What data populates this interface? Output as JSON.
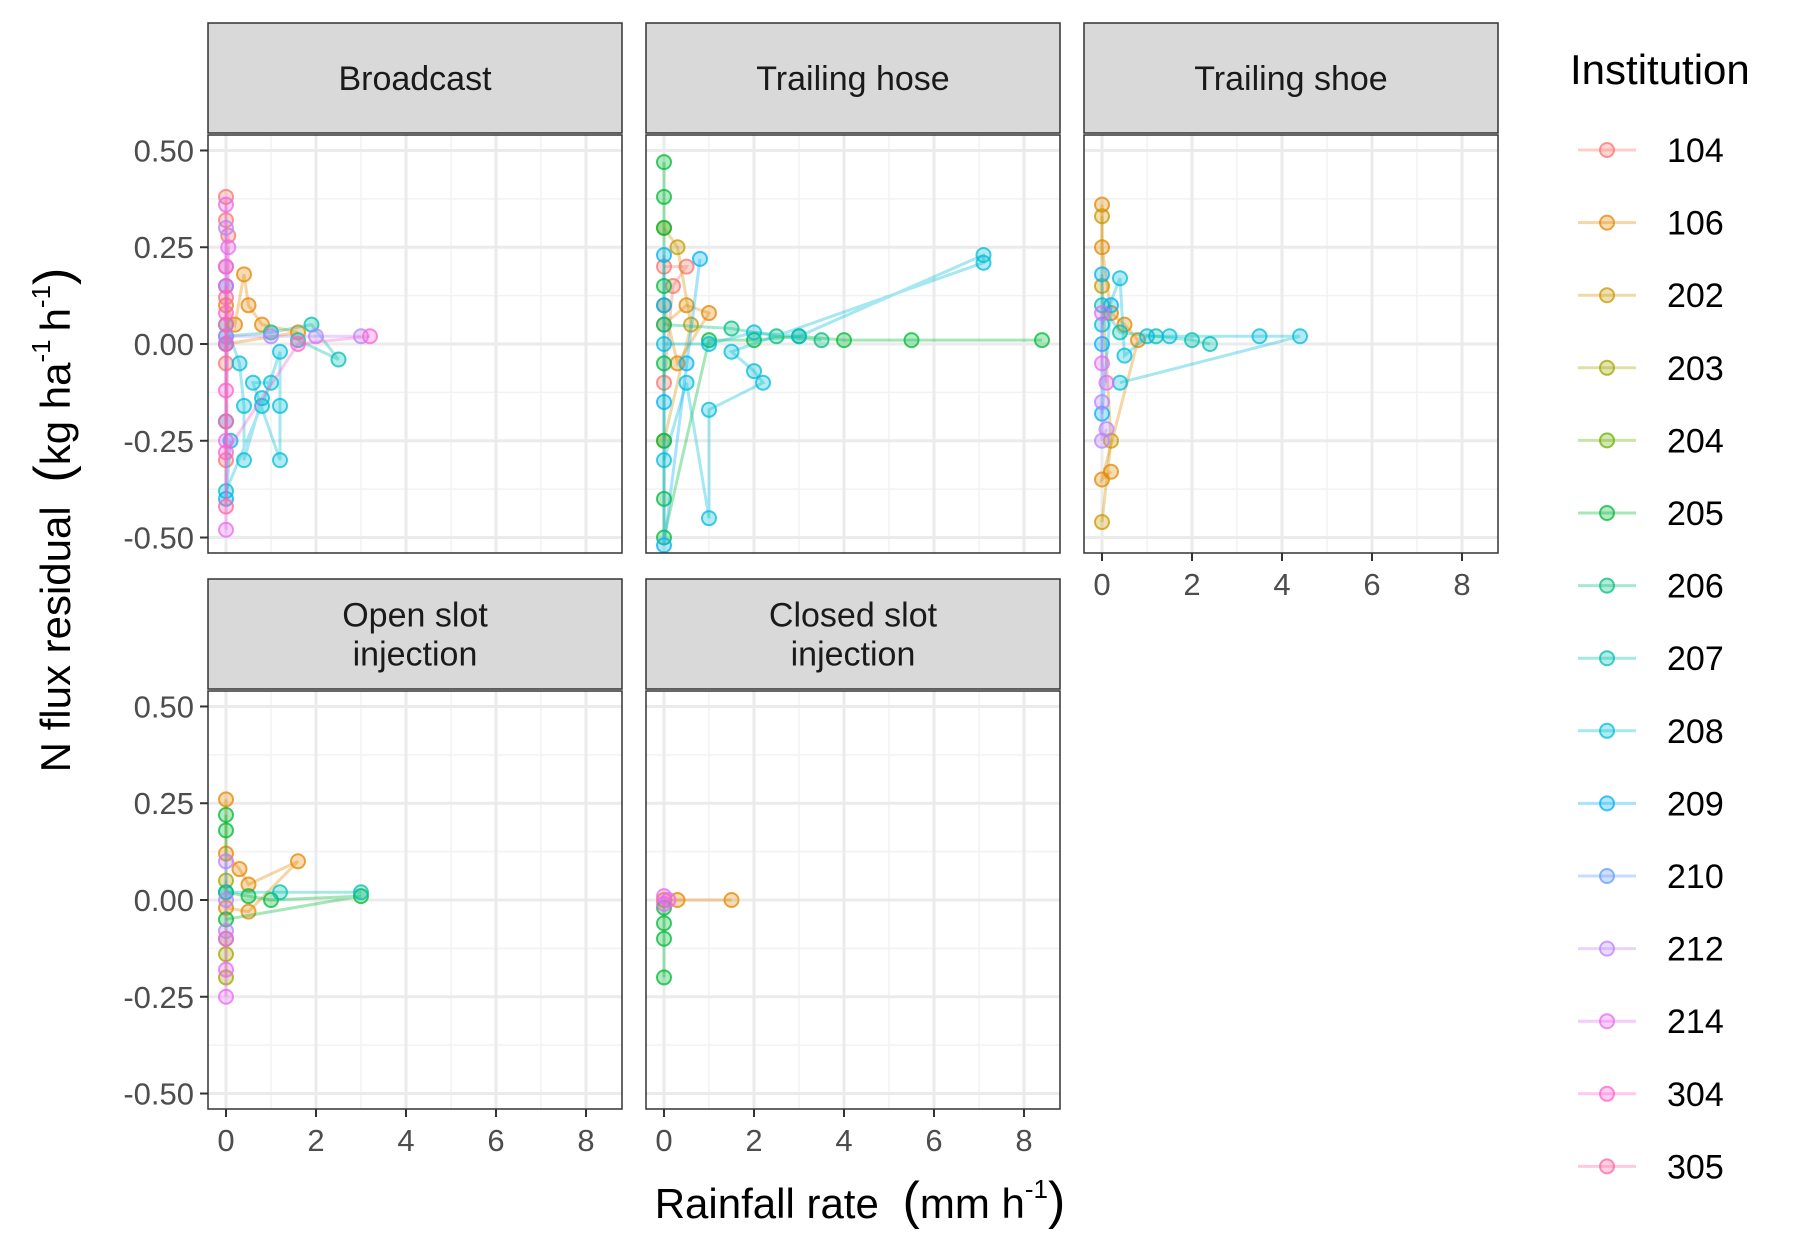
{
  "chart_data": {
    "type": "line",
    "title": "",
    "xlabel": "Rainfall rate",
    "xlabel_unit": "mm h",
    "xlabel_sup": "-1",
    "ylabel": "N flux residual",
    "ylabel_unit_kg": "kg ha",
    "ylabel_sup1": "-1",
    "ylabel_unit_h": "h",
    "ylabel_sup2": "-1",
    "xlim": [
      -0.4,
      8.8
    ],
    "ylim": [
      -0.54,
      0.54
    ],
    "xticks": [
      0,
      2,
      4,
      6,
      8
    ],
    "yticks": [
      0.5,
      0.25,
      0.0,
      -0.25,
      -0.5
    ],
    "ytick_labels": [
      "0.50",
      "0.25",
      "0.00",
      "-0.25",
      "-0.50"
    ],
    "grid": true,
    "legend": {
      "title": "Institution",
      "position": "right",
      "entries": [
        {
          "label": "104",
          "color": "#F8766D"
        },
        {
          "label": "106",
          "color": "#E58700"
        },
        {
          "label": "202",
          "color": "#C99800"
        },
        {
          "label": "203",
          "color": "#A3A500"
        },
        {
          "label": "204",
          "color": "#6BB100"
        },
        {
          "label": "205",
          "color": "#00BA38"
        },
        {
          "label": "206",
          "color": "#00BF7D"
        },
        {
          "label": "207",
          "color": "#00C0AF"
        },
        {
          "label": "208",
          "color": "#00BCD8"
        },
        {
          "label": "209",
          "color": "#00B0F6"
        },
        {
          "label": "210",
          "color": "#619CFF"
        },
        {
          "label": "212",
          "color": "#B983FF"
        },
        {
          "label": "214",
          "color": "#E76BF3"
        },
        {
          "label": "304",
          "color": "#FD61D1"
        },
        {
          "label": "305",
          "color": "#FF67A4"
        }
      ]
    },
    "panels": [
      {
        "label_lines": [
          "Broadcast"
        ],
        "series": [
          {
            "institution": "104",
            "points": [
              [
                0,
                0.38
              ],
              [
                0,
                0.32
              ],
              [
                0,
                0.2
              ],
              [
                0,
                -0.05
              ],
              [
                0,
                -0.3
              ],
              [
                0.05,
                0.28
              ]
            ]
          },
          {
            "institution": "106",
            "points": [
              [
                0,
                0.1
              ],
              [
                0.2,
                0.05
              ],
              [
                0.4,
                0.18
              ],
              [
                0.5,
                0.1
              ],
              [
                0.8,
                0.05
              ],
              [
                1.6,
                0.03
              ],
              [
                0,
                0.0
              ]
            ]
          },
          {
            "institution": "207",
            "points": [
              [
                0,
                0.02
              ],
              [
                1.0,
                0.03
              ],
              [
                1.9,
                0.05
              ],
              [
                2.5,
                -0.04
              ],
              [
                1.6,
                0.01
              ]
            ]
          },
          {
            "institution": "208",
            "points": [
              [
                0,
                0.05
              ],
              [
                0.3,
                -0.05
              ],
              [
                0.4,
                -0.16
              ],
              [
                0.4,
                -0.3
              ],
              [
                0.8,
                -0.14
              ],
              [
                0.8,
                -0.16
              ],
              [
                1.2,
                -0.02
              ],
              [
                1.2,
                -0.16
              ],
              [
                1.2,
                -0.3
              ],
              [
                0.6,
                -0.1
              ],
              [
                1.0,
                -0.1
              ],
              [
                0,
                -0.38
              ]
            ]
          },
          {
            "institution": "209",
            "points": [
              [
                0,
                0.15
              ],
              [
                0,
                0.0
              ],
              [
                0,
                -0.2
              ],
              [
                0,
                -0.4
              ],
              [
                0.1,
                -0.25
              ]
            ]
          },
          {
            "institution": "212",
            "points": [
              [
                0,
                0.3
              ],
              [
                0,
                0.02
              ],
              [
                1.0,
                0.02
              ],
              [
                2.0,
                0.02
              ],
              [
                3.0,
                0.02
              ]
            ]
          },
          {
            "institution": "214",
            "points": [
              [
                0,
                0.36
              ],
              [
                0,
                0.2
              ],
              [
                0,
                -0.25
              ],
              [
                0,
                -0.48
              ],
              [
                0.05,
                0.25
              ]
            ]
          },
          {
            "institution": "304",
            "points": [
              [
                0,
                0.15
              ],
              [
                0,
                0.08
              ],
              [
                0,
                0.0
              ],
              [
                0,
                -0.12
              ],
              [
                0,
                -0.28
              ],
              [
                1.6,
                0.0
              ],
              [
                3.2,
                0.02
              ]
            ]
          },
          {
            "institution": "305",
            "points": [
              [
                0,
                0.12
              ],
              [
                0,
                -0.2
              ],
              [
                0,
                -0.42
              ],
              [
                0,
                0.05
              ]
            ]
          }
        ]
      },
      {
        "label_lines": [
          "Trailing hose"
        ],
        "series": [
          {
            "institution": "104",
            "points": [
              [
                0,
                0.2
              ],
              [
                0.5,
                0.2
              ],
              [
                0.2,
                0.15
              ],
              [
                0,
                -0.1
              ]
            ]
          },
          {
            "institution": "106",
            "points": [
              [
                0,
                0.05
              ],
              [
                0.5,
                0.1
              ],
              [
                1.0,
                0.08
              ],
              [
                0.3,
                -0.05
              ],
              [
                0,
                0.1
              ]
            ]
          },
          {
            "institution": "202",
            "points": [
              [
                0,
                0.3
              ],
              [
                0.3,
                0.25
              ],
              [
                0.6,
                0.05
              ],
              [
                0,
                -0.25
              ]
            ]
          },
          {
            "institution": "205",
            "points": [
              [
                0,
                0.47
              ],
              [
                0,
                0.38
              ],
              [
                0,
                0.3
              ],
              [
                0,
                0.15
              ],
              [
                0,
                -0.05
              ],
              [
                0,
                -0.25
              ],
              [
                0,
                -0.4
              ],
              [
                0,
                -0.5
              ],
              [
                1.0,
                0.01
              ],
              [
                2.0,
                0.01
              ],
              [
                3.0,
                0.02
              ],
              [
                4.0,
                0.01
              ],
              [
                5.5,
                0.01
              ],
              [
                8.4,
                0.01
              ]
            ]
          },
          {
            "institution": "206",
            "points": [
              [
                0,
                0.05
              ],
              [
                1.5,
                0.04
              ],
              [
                2.5,
                0.02
              ],
              [
                3.5,
                0.01
              ]
            ]
          },
          {
            "institution": "208",
            "points": [
              [
                0,
                0.0
              ],
              [
                1.0,
                0.0
              ],
              [
                2.0,
                0.03
              ],
              [
                3.0,
                0.02
              ],
              [
                7.1,
                0.23
              ],
              [
                7.1,
                0.21
              ],
              [
                1.5,
                -0.02
              ],
              [
                2.0,
                -0.07
              ],
              [
                2.2,
                -0.1
              ],
              [
                1.0,
                -0.17
              ],
              [
                1.0,
                -0.45
              ],
              [
                0.5,
                -0.1
              ],
              [
                0,
                -0.3
              ]
            ]
          },
          {
            "institution": "209",
            "points": [
              [
                0,
                0.23
              ],
              [
                0,
                0.1
              ],
              [
                0,
                -0.15
              ],
              [
                0,
                -0.52
              ],
              [
                0.8,
                0.22
              ],
              [
                0.5,
                -0.05
              ]
            ]
          }
        ]
      },
      {
        "label_lines": [
          "Trailing shoe"
        ],
        "series": [
          {
            "institution": "106",
            "points": [
              [
                0,
                0.36
              ],
              [
                0,
                0.25
              ],
              [
                0.2,
                0.08
              ],
              [
                0.5,
                0.05
              ],
              [
                0.8,
                0.01
              ],
              [
                0,
                -0.35
              ],
              [
                0.2,
                -0.33
              ]
            ]
          },
          {
            "institution": "202",
            "points": [
              [
                0,
                0.33
              ],
              [
                0,
                0.15
              ],
              [
                0.2,
                -0.25
              ],
              [
                0,
                -0.46
              ]
            ]
          },
          {
            "institution": "207",
            "points": [
              [
                0,
                0.1
              ],
              [
                0.4,
                0.03
              ],
              [
                1.2,
                0.02
              ],
              [
                2.0,
                0.01
              ],
              [
                2.4,
                0.0
              ]
            ]
          },
          {
            "institution": "208",
            "points": [
              [
                0,
                0.05
              ],
              [
                0.4,
                0.17
              ],
              [
                0.5,
                -0.03
              ],
              [
                1.0,
                0.02
              ],
              [
                1.5,
                0.02
              ],
              [
                3.5,
                0.02
              ],
              [
                4.4,
                0.02
              ],
              [
                0.4,
                -0.1
              ]
            ]
          },
          {
            "institution": "209",
            "points": [
              [
                0,
                0.18
              ],
              [
                0,
                0.0
              ],
              [
                0,
                -0.18
              ],
              [
                0.2,
                0.1
              ]
            ]
          },
          {
            "institution": "212",
            "points": [
              [
                0,
                -0.15
              ],
              [
                0,
                -0.25
              ],
              [
                0.1,
                -0.22
              ]
            ]
          },
          {
            "institution": "214",
            "points": [
              [
                0,
                0.08
              ],
              [
                0,
                -0.05
              ],
              [
                0.1,
                -0.1
              ]
            ]
          }
        ]
      },
      {
        "label_lines": [
          "Open slot",
          "injection"
        ],
        "series": [
          {
            "institution": "106",
            "points": [
              [
                0,
                0.26
              ],
              [
                0,
                0.12
              ],
              [
                0.3,
                0.08
              ],
              [
                0.5,
                0.04
              ],
              [
                1.6,
                0.1
              ],
              [
                0.5,
                -0.03
              ],
              [
                0,
                -0.02
              ]
            ]
          },
          {
            "institution": "203",
            "points": [
              [
                0,
                0.05
              ],
              [
                0,
                -0.1
              ],
              [
                0,
                -0.14
              ],
              [
                0,
                -0.2
              ]
            ]
          },
          {
            "institution": "205",
            "points": [
              [
                0,
                0.22
              ],
              [
                0,
                0.18
              ],
              [
                0,
                0.02
              ],
              [
                0.5,
                0.01
              ],
              [
                1.0,
                0.0
              ],
              [
                3.0,
                0.01
              ],
              [
                0,
                -0.05
              ]
            ]
          },
          {
            "institution": "207",
            "points": [
              [
                0,
                0.02
              ],
              [
                1.2,
                0.02
              ],
              [
                3.0,
                0.02
              ]
            ]
          },
          {
            "institution": "212",
            "points": [
              [
                0,
                0.1
              ],
              [
                0,
                0.0
              ],
              [
                0,
                -0.08
              ]
            ]
          },
          {
            "institution": "214",
            "points": [
              [
                0,
                -0.1
              ],
              [
                0,
                -0.18
              ],
              [
                0,
                -0.25
              ]
            ]
          }
        ]
      },
      {
        "label_lines": [
          "Closed slot",
          "injection"
        ],
        "series": [
          {
            "institution": "106",
            "points": [
              [
                0,
                0.0
              ],
              [
                0.3,
                0.0
              ],
              [
                1.5,
                0.0
              ]
            ]
          },
          {
            "institution": "205",
            "points": [
              [
                0,
                -0.02
              ],
              [
                0,
                -0.06
              ],
              [
                0,
                -0.1
              ],
              [
                0,
                -0.2
              ]
            ]
          },
          {
            "institution": "214",
            "points": [
              [
                0,
                0.01
              ],
              [
                0,
                -0.01
              ],
              [
                0.1,
                0.0
              ]
            ]
          }
        ]
      }
    ]
  }
}
